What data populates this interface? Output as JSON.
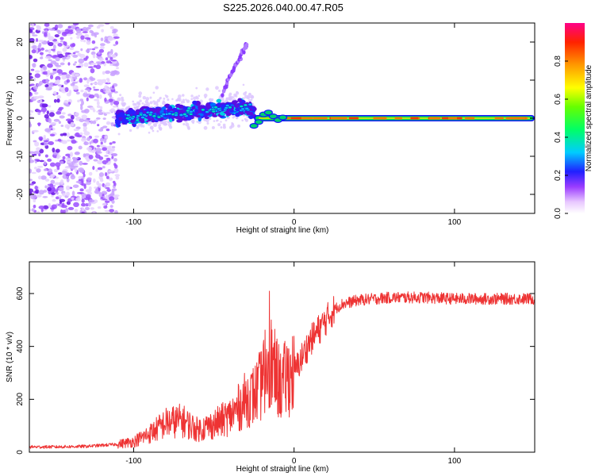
{
  "title": "S225.2026.040.00.47.R05",
  "chart_data": [
    {
      "type": "heatmap",
      "xlabel": "Height of straight line (km)",
      "ylabel": "Frequency (Hz)",
      "xlim": [
        -165,
        150
      ],
      "ylim": [
        -25,
        25
      ],
      "xticks": [
        -100,
        0,
        100
      ],
      "yticks": [
        -20,
        -10,
        0,
        10,
        20
      ],
      "colorbar": {
        "label": "Normalized spectral amplitude",
        "range": [
          0,
          1
        ],
        "ticks": [
          0.0,
          0.2,
          0.4,
          0.6,
          0.8
        ]
      },
      "features": {
        "noise_region_x": [
          -165,
          -110
        ],
        "scatter_region_x": [
          -110,
          -25
        ],
        "rising_arm": [
          [
            -45,
            6
          ],
          [
            -40,
            11
          ],
          [
            -35,
            15
          ],
          [
            -30,
            19
          ]
        ],
        "carrier_line": {
          "x_start": -25,
          "x_end": 150,
          "frequency": 0
        }
      }
    },
    {
      "type": "line",
      "xlabel": "Height of straight line (km)",
      "ylabel": "SNR (10 * v/v)",
      "xlim": [
        -165,
        150
      ],
      "ylim": [
        0,
        720
      ],
      "xticks": [
        -100,
        0,
        100
      ],
      "yticks": [
        0,
        200,
        400,
        600
      ],
      "series": [
        {
          "name": "SNR",
          "color": "#ee3333",
          "x": [
            -165,
            -150,
            -130,
            -110,
            -100,
            -90,
            -80,
            -70,
            -60,
            -50,
            -40,
            -35,
            -30,
            -25,
            -20,
            -16,
            -12,
            -8,
            -4,
            0,
            5,
            10,
            15,
            20,
            25,
            30,
            40,
            50,
            60,
            80,
            100,
            120,
            150
          ],
          "values": [
            20,
            20,
            22,
            30,
            40,
            70,
            110,
            120,
            85,
            105,
            135,
            165,
            200,
            215,
            260,
            370,
            300,
            250,
            290,
            300,
            360,
            420,
            460,
            500,
            540,
            560,
            575,
            580,
            585,
            585,
            580,
            580,
            580
          ]
        }
      ]
    }
  ]
}
